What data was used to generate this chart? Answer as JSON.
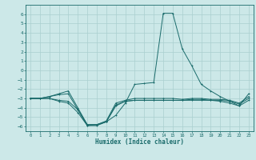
{
  "xlabel": "Humidex (Indice chaleur)",
  "bg_color": "#cce8e8",
  "line_color": "#1a6b6b",
  "grid_color": "#aacfcf",
  "xlim": [
    -0.5,
    23.5
  ],
  "ylim": [
    -6.5,
    7.0
  ],
  "yticks": [
    -6,
    -5,
    -4,
    -3,
    -2,
    -1,
    0,
    1,
    2,
    3,
    4,
    5,
    6
  ],
  "xticks": [
    0,
    1,
    2,
    3,
    4,
    5,
    6,
    7,
    8,
    9,
    10,
    11,
    12,
    13,
    14,
    15,
    16,
    17,
    18,
    19,
    20,
    21,
    22,
    23
  ],
  "x": [
    0,
    1,
    2,
    3,
    4,
    5,
    6,
    7,
    8,
    9,
    10,
    11,
    12,
    13,
    14,
    15,
    16,
    17,
    18,
    19,
    20,
    21,
    22,
    23
  ],
  "line1": [
    -3.0,
    -3.0,
    -2.8,
    -2.6,
    -2.5,
    -4.2,
    -5.9,
    -5.9,
    -5.5,
    -4.8,
    -3.5,
    -1.5,
    -1.4,
    -1.3,
    6.1,
    6.1,
    2.3,
    0.5,
    -1.5,
    -2.2,
    -2.8,
    -3.3,
    -3.8,
    -2.5
  ],
  "line2": [
    -3.0,
    -3.0,
    -3.0,
    -3.3,
    -3.5,
    -4.5,
    -5.9,
    -5.8,
    -5.5,
    -3.8,
    -3.3,
    -3.2,
    -3.2,
    -3.2,
    -3.2,
    -3.2,
    -3.2,
    -3.2,
    -3.2,
    -3.2,
    -3.3,
    -3.5,
    -3.8,
    -3.2
  ],
  "line3": [
    -3.0,
    -3.0,
    -3.0,
    -3.2,
    -3.3,
    -4.2,
    -5.8,
    -5.8,
    -5.5,
    -3.7,
    -3.3,
    -3.2,
    -3.2,
    -3.2,
    -3.2,
    -3.2,
    -3.2,
    -3.1,
    -3.1,
    -3.2,
    -3.2,
    -3.3,
    -3.6,
    -3.0
  ],
  "line4": [
    -3.0,
    -3.0,
    -2.8,
    -2.5,
    -2.2,
    -4.0,
    -5.8,
    -5.8,
    -5.4,
    -3.5,
    -3.2,
    -3.0,
    -3.0,
    -3.0,
    -3.0,
    -3.0,
    -3.1,
    -3.0,
    -3.0,
    -3.1,
    -3.1,
    -3.2,
    -3.5,
    -2.8
  ]
}
